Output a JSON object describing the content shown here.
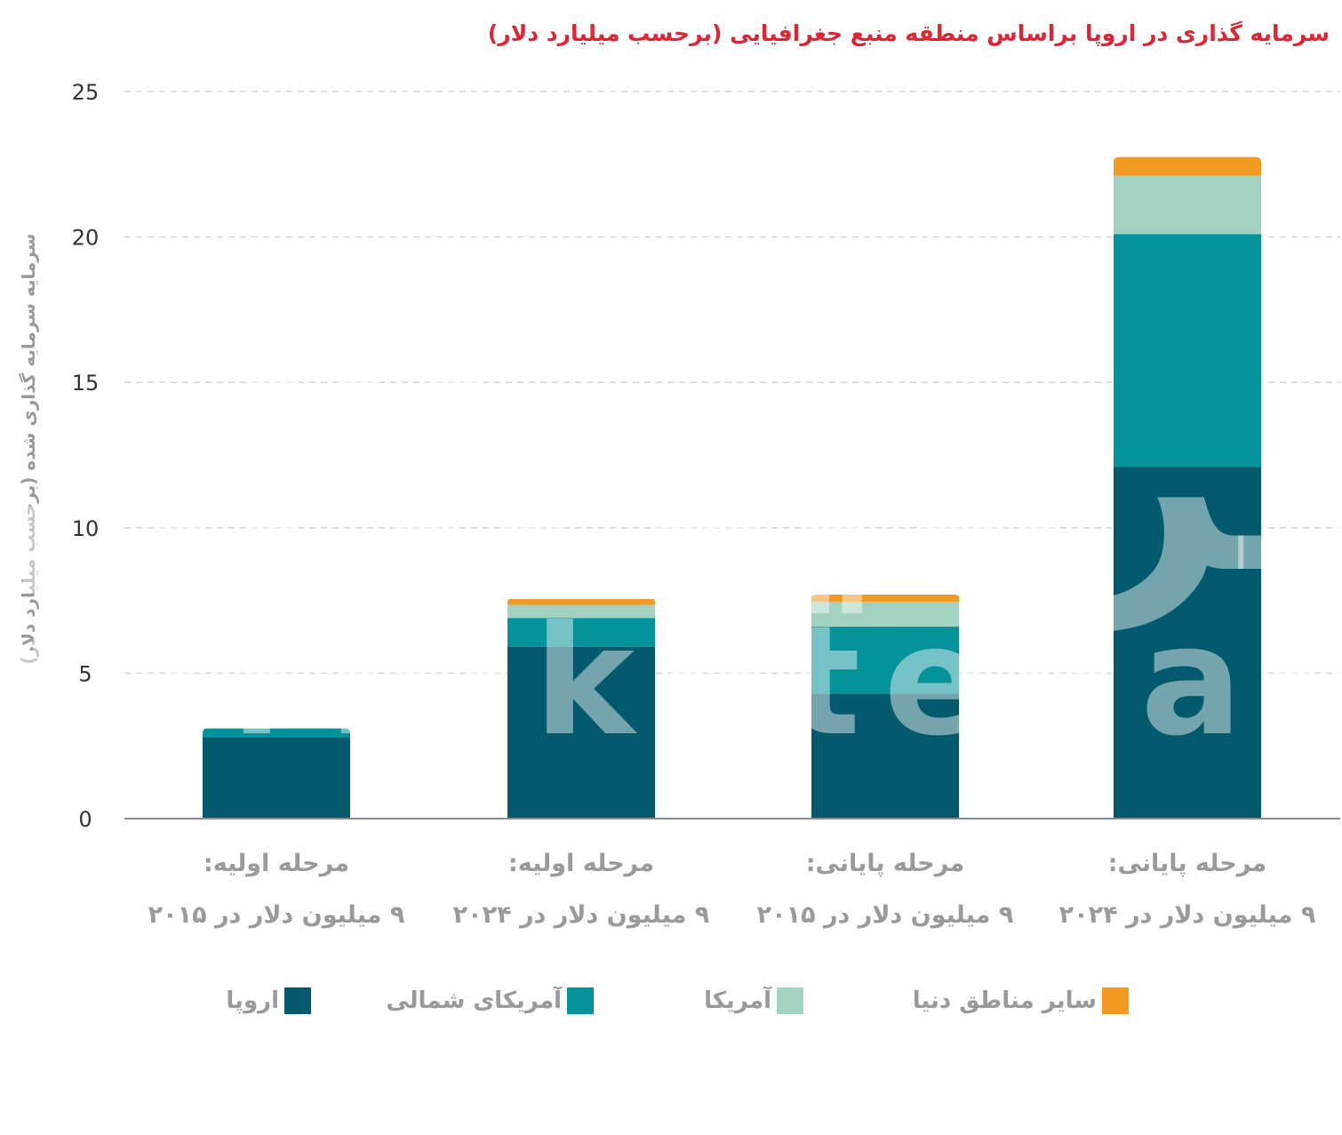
{
  "chart_data": {
    "type": "bar",
    "stacked": true,
    "title": "سرمایه گذاری در اروپا براساس منطقه منبع جغرافیایی (برحسب میلیارد دلار)",
    "ylabel": "سرمایه سرمایه گذاری شده (برحسب میلیارد دلار)",
    "xlabel": "",
    "ylim": [
      0,
      25
    ],
    "yticks": [
      "0",
      "5",
      "10",
      "15",
      "20",
      "25"
    ],
    "grid": true,
    "legend_position": "bottom",
    "categories": [
      {
        "line1": "مرحله اولیه:",
        "line2": "۹ میلیون دلار در ۲۰۱۵"
      },
      {
        "line1": "مرحله اولیه:",
        "line2": "۹ میلیون دلار در ۲۰۲۴"
      },
      {
        "line1": "مرحله پایانی:",
        "line2": "۹ میلیون دلار در ۲۰۱۵"
      },
      {
        "line1": "مرحله پایانی:",
        "line2": "۹ میلیون دلار در ۲۰۲۴"
      }
    ],
    "series": [
      {
        "name": "اروپا",
        "color": "#035a6c",
        "values": [
          2.8,
          5.9,
          4.3,
          12.1
        ]
      },
      {
        "name": "آمریکای شمالی",
        "color": "#04939a",
        "values": [
          0.3,
          1.0,
          2.3,
          8.0
        ]
      },
      {
        "name": "آمریکا",
        "color": "#a3d3c0",
        "values": [
          0.0,
          0.45,
          0.85,
          2.0
        ]
      },
      {
        "name": "سایر مناطق دنیا",
        "color": "#f29a22",
        "values": [
          0.0,
          0.2,
          0.25,
          0.65
        ]
      }
    ]
  },
  "watermark": {
    "persian": "فرهیختگان",
    "latin": "farhikhtegan"
  }
}
